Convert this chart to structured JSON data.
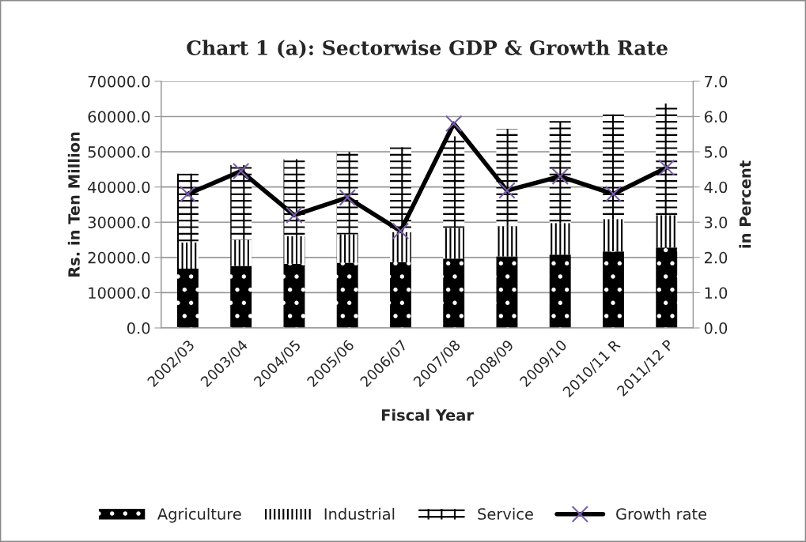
{
  "chart_data": {
    "type": "bar",
    "title": "Chart 1 (a): Sectorwise GDP & Growth Rate",
    "xlabel": "Fiscal Year",
    "ylabel": "Rs. in Ten Million",
    "y2label": "in Percent",
    "categories": [
      "2002/03",
      "2003/04",
      "2004/05",
      "2005/06",
      "2006/07",
      "2007/08",
      "2008/09",
      "2009/10",
      "2010/11 R",
      "2011/12 P"
    ],
    "stacked": true,
    "series": [
      {
        "name": "Agriculture",
        "color": "#000000",
        "values": [
          16800,
          17600,
          18200,
          18500,
          18700,
          19700,
          20300,
          20800,
          21700,
          22800
        ]
      },
      {
        "name": "Industrial",
        "color": "#000000",
        "values": [
          7450,
          7400,
          7800,
          8100,
          8500,
          8700,
          8600,
          9000,
          9200,
          9200
        ]
      },
      {
        "name": "Service",
        "color": "#000000",
        "values": [
          19550,
          21200,
          21900,
          23300,
          24100,
          26000,
          27600,
          28900,
          29700,
          31700
        ]
      },
      {
        "name": "Growth rate",
        "type": "line",
        "axis": "y2",
        "color": "#000000",
        "marker": "cross",
        "values": [
          3.8,
          4.45,
          3.2,
          3.7,
          2.75,
          5.8,
          3.9,
          4.3,
          3.8,
          4.55
        ]
      }
    ],
    "ylim": [
      0,
      70000
    ],
    "yticks": [
      {
        "value": 0,
        "label": "0.0"
      },
      {
        "value": 10000,
        "label": "10000.0"
      },
      {
        "value": 20000,
        "label": "20000.0"
      },
      {
        "value": 30000,
        "label": "30000.0"
      },
      {
        "value": 40000,
        "label": "40000.0"
      },
      {
        "value": 50000,
        "label": "50000.0"
      },
      {
        "value": 60000,
        "label": "60000.0"
      },
      {
        "value": 70000,
        "label": "70000.0"
      }
    ],
    "y2lim": [
      0,
      7
    ],
    "y2ticks": [
      {
        "value": 0,
        "label": "0.0"
      },
      {
        "value": 1,
        "label": "1.0"
      },
      {
        "value": 2,
        "label": "2.0"
      },
      {
        "value": 3,
        "label": "3.0"
      },
      {
        "value": 4,
        "label": "4.0"
      },
      {
        "value": 5,
        "label": "5.0"
      },
      {
        "value": 6,
        "label": "6.0"
      },
      {
        "value": 7,
        "label": "7.0"
      }
    ],
    "grid": "y",
    "legend": "bottom"
  }
}
